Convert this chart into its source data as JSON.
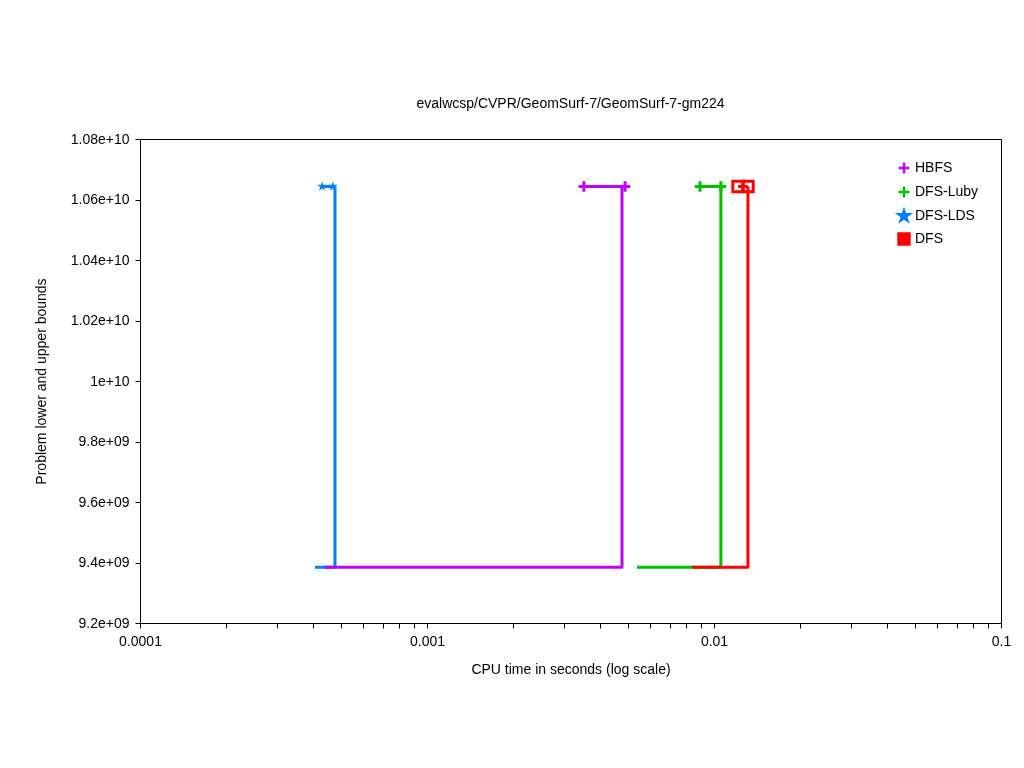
{
  "chart_data": {
    "type": "line",
    "title": "evalwcsp/CVPR/GeomSurf-7/GeomSurf-7-gm224",
    "xlabel": "CPU time in seconds (log scale)",
    "ylabel": "Problem lower and upper bounds",
    "log": "x",
    "grid": false,
    "legend": "top right",
    "xlim": [
      0.0001,
      0.1
    ],
    "xticks": [
      0.0001,
      {
        "value": 0.0002,
        "label": null
      },
      {
        "value": 0.0003,
        "label": null
      },
      {
        "value": 0.0004,
        "label": null
      },
      {
        "value": 0.0005,
        "label": null
      },
      {
        "value": 0.0006,
        "label": null
      },
      {
        "value": 0.0007,
        "label": null
      },
      {
        "value": 0.0008,
        "label": null
      },
      {
        "value": 0.0009,
        "label": null
      },
      0.001,
      {
        "value": 0.002,
        "label": null
      },
      {
        "value": 0.003,
        "label": null
      },
      {
        "value": 0.004,
        "label": null
      },
      {
        "value": 0.005,
        "label": null
      },
      {
        "value": 0.006,
        "label": null
      },
      {
        "value": 0.007,
        "label": null
      },
      {
        "value": 0.008,
        "label": null
      },
      {
        "value": 0.009,
        "label": null
      },
      0.01,
      {
        "value": 0.02,
        "label": null
      },
      {
        "value": 0.03,
        "label": null
      },
      {
        "value": 0.04,
        "label": null
      },
      {
        "value": 0.05,
        "label": null
      },
      {
        "value": 0.06,
        "label": null
      },
      {
        "value": 0.07,
        "label": null
      },
      {
        "value": 0.08,
        "label": null
      },
      {
        "value": 0.09,
        "label": null
      },
      0.1
    ],
    "ylim": [
      9200000000,
      10800000000
    ],
    "yticks": [
      {
        "value": 9200000000,
        "label": "9.2e+09"
      },
      {
        "value": 9400000000,
        "label": "9.4e+09"
      },
      {
        "value": 9600000000,
        "label": "9.6e+09"
      },
      {
        "value": 9800000000,
        "label": "9.8e+09"
      },
      {
        "value": 10000000000,
        "label": "1e+10"
      },
      {
        "value": 10200000000,
        "label": "1.02e+10"
      },
      {
        "value": 10400000000,
        "label": "1.04e+10"
      },
      {
        "value": 10600000000,
        "label": "1.06e+10"
      },
      {
        "value": 10800000000,
        "label": "1.08e+10"
      }
    ],
    "series": [
      {
        "color": "#c000ff",
        "marker": "none",
        "x": [
          0.000441,
          0.00478,
          0.00478
        ],
        "values": [
          9384000000,
          9384000000,
          10643000000
        ]
      },
      {
        "name": "HBFS",
        "color": "#c000ff",
        "marker": "cross",
        "x": [
          0.00352,
          0.0049
        ],
        "values": [
          10643000000,
          10643000000
        ]
      },
      {
        "color": "#00c000",
        "marker": "none",
        "x": [
          0.00539,
          0.01057,
          0.01057
        ],
        "values": [
          9384000000,
          9384000000,
          10643000000
        ]
      },
      {
        "name": "DFS-Luby",
        "color": "#00c000",
        "marker": "cross",
        "x": [
          0.00894,
          0.01057
        ],
        "values": [
          10643000000,
          10643000000
        ]
      },
      {
        "color": "#0080ff",
        "marker": "none",
        "x": [
          0.000407,
          0.000478,
          0.000478
        ],
        "values": [
          9384000000,
          9384000000,
          10643000000
        ]
      },
      {
        "name": "DFS-LDS",
        "color": "#0080ff",
        "marker": "star",
        "x": [
          0.000431,
          0.00047
        ],
        "values": [
          10643000000,
          10643000000
        ]
      },
      {
        "color": "#ff0000",
        "marker": "none",
        "x": [
          0.00838,
          0.01313,
          0.01313
        ],
        "values": [
          9384000000,
          9384000000,
          10643000000
        ]
      },
      {
        "name": "DFS",
        "color": "#ff0000",
        "marker": "square",
        "x": [
          0.01213,
          0.01313
        ],
        "values": [
          10643000000,
          10643000000
        ]
      }
    ]
  }
}
